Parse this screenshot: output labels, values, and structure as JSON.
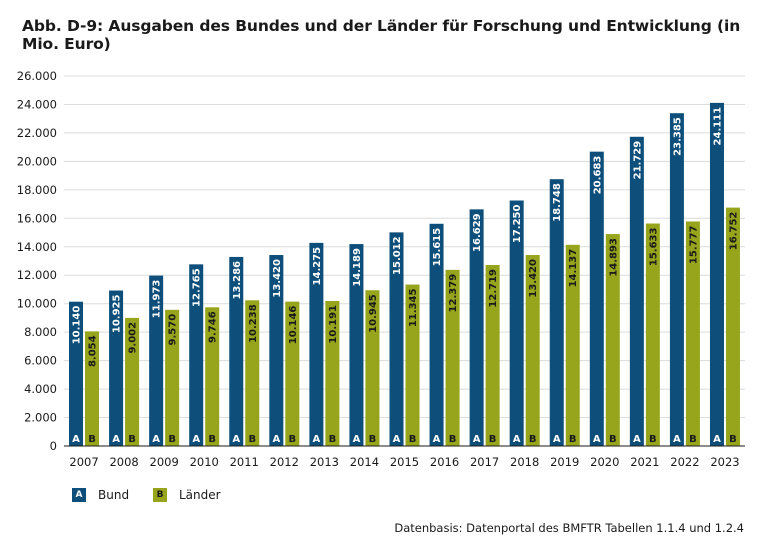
{
  "chart_data": {
    "type": "bar",
    "title": "Abb. D-9: Ausgaben des Bundes und der Länder für Forschung und Entwicklung (in Mio. Euro)",
    "categories": [
      "2007",
      "2008",
      "2009",
      "2010",
      "2011",
      "2012",
      "2013",
      "2014",
      "2015",
      "2016",
      "2017",
      "2018",
      "2019",
      "2020",
      "2021",
      "2022",
      "2023"
    ],
    "series": [
      {
        "name": "Bund",
        "marker": "A",
        "color": "#0d4e7a",
        "values": [
          10140,
          10925,
          11973,
          12765,
          13286,
          13420,
          14275,
          14189,
          15012,
          15615,
          16629,
          17250,
          18748,
          20683,
          21729,
          23385,
          24111
        ],
        "labels": [
          "10.140",
          "10.925",
          "11.973",
          "12.765",
          "13.286",
          "13.420",
          "14.275",
          "14.189",
          "15.012",
          "15.615",
          "16.629",
          "17.250",
          "18.748",
          "20.683",
          "21.729",
          "23.385",
          "24.111"
        ]
      },
      {
        "name": "Länder",
        "marker": "B",
        "color": "#96a51b",
        "values": [
          8054,
          9002,
          9570,
          9746,
          10238,
          10146,
          10191,
          10945,
          11345,
          12379,
          12719,
          13420,
          14137,
          14893,
          15633,
          15777,
          16752
        ],
        "labels": [
          "8.054",
          "9.002",
          "9.570",
          "9.746",
          "10.238",
          "10.146",
          "10.191",
          "10.945",
          "11.345",
          "12.379",
          "12.719",
          "13.420",
          "14.137",
          "14.893",
          "15.633",
          "15.777",
          "16.752"
        ]
      }
    ],
    "ylim": [
      0,
      26000
    ],
    "yticks": [
      0,
      2000,
      4000,
      6000,
      8000,
      10000,
      12000,
      14000,
      16000,
      18000,
      20000,
      22000,
      24000,
      26000
    ],
    "ytick_labels": [
      "0",
      "2.000",
      "4.000",
      "6.000",
      "8.000",
      "10.000",
      "12.000",
      "14.000",
      "16.000",
      "18.000",
      "20.000",
      "22.000",
      "24.000",
      "26.000"
    ],
    "grid": true,
    "legend_position": "bottom-left"
  },
  "source_note": "Datenbasis: Datenportal des BMFTR Tabellen 1.1.4 und 1.2.4"
}
